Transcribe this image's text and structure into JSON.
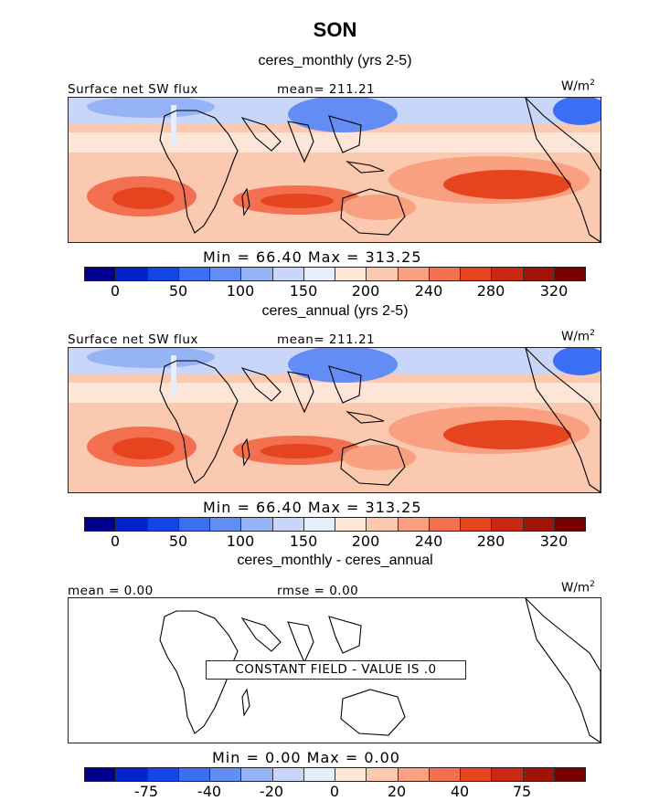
{
  "title": "SON",
  "colors": {
    "palette": [
      "#00008c",
      "#0022c8",
      "#1446e6",
      "#3c6ef5",
      "#648cf5",
      "#96b4f5",
      "#c8d6fa",
      "#e6eefc",
      "#fde6d8",
      "#fbc8b0",
      "#f8a080",
      "#f27050",
      "#e6441e",
      "#c82814",
      "#a01408",
      "#780000"
    ]
  },
  "panels": [
    {
      "subtitle": "ceres_monthly (yrs 2-5)",
      "left_label": "Surface net SW flux",
      "center_label": "mean= 211.21",
      "unit": "W/m",
      "unit_sup": "2",
      "minmax": "Min =   66.40  Max =  313.25",
      "ticks": [
        "0",
        "50",
        "100",
        "150",
        "200",
        "240",
        "280",
        "320"
      ]
    },
    {
      "subtitle": "ceres_annual (yrs 2-5)",
      "left_label": "Surface net SW flux",
      "center_label": "mean= 211.21",
      "unit": "W/m",
      "unit_sup": "2",
      "minmax": "Min =   66.40  Max =  313.25",
      "ticks": [
        "0",
        "50",
        "100",
        "150",
        "200",
        "240",
        "280",
        "320"
      ]
    },
    {
      "subtitle": "ceres_monthly - ceres_annual",
      "left_label": "mean =   0.00",
      "center_label": "rmse =   0.00",
      "unit": "W/m",
      "unit_sup": "2",
      "constant_text": "CONSTANT FIELD - VALUE IS .0",
      "minmax": "Min =    0.00  Max =    0.00",
      "ticks": [
        "-75",
        "-40",
        "-20",
        "0",
        "20",
        "40",
        "75"
      ]
    }
  ]
}
